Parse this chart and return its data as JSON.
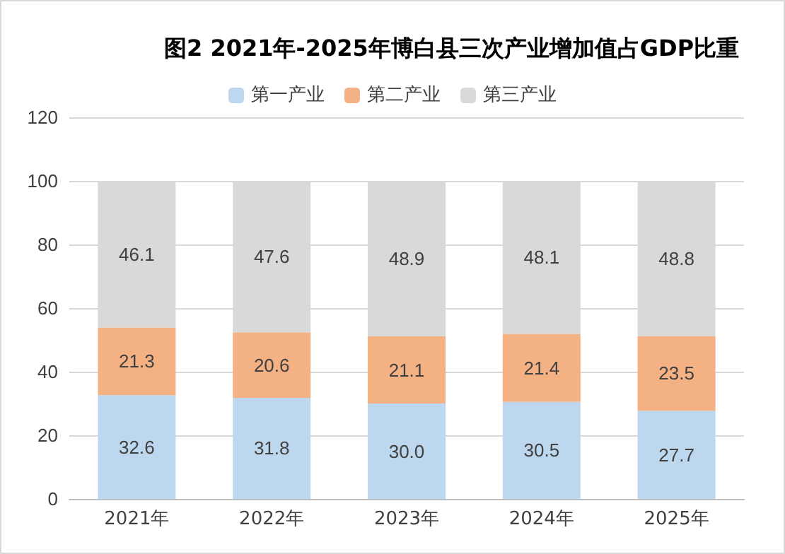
{
  "chart_data": {
    "type": "bar",
    "title": "图2 2021年-2025年博白县三次产业增加值占GDP比重",
    "categories": [
      "2021年",
      "2022年",
      "2023年",
      "2024年",
      "2025年"
    ],
    "stacked": true,
    "series": [
      {
        "name": "第一产业",
        "color": "#bdd7ee",
        "values": [
          32.6,
          31.8,
          30.0,
          30.5,
          27.7
        ],
        "value_labels": [
          "32.6",
          "31.8",
          "30.0",
          "30.5",
          "27.7"
        ]
      },
      {
        "name": "第二产业",
        "color": "#f4b183",
        "values": [
          21.3,
          20.6,
          21.1,
          21.4,
          23.5
        ],
        "value_labels": [
          "21.3",
          "20.6",
          "21.1",
          "21.4",
          "23.5"
        ]
      },
      {
        "name": "第三产业",
        "color": "#d9d9d9",
        "values": [
          46.1,
          47.6,
          48.9,
          48.1,
          48.8
        ],
        "value_labels": [
          "46.1",
          "47.6",
          "48.9",
          "48.1",
          "48.8"
        ]
      }
    ],
    "ylim": [
      0,
      120
    ],
    "yticks": [
      0,
      20,
      40,
      60,
      80,
      100,
      120
    ],
    "grid": "y",
    "legend": "top"
  }
}
